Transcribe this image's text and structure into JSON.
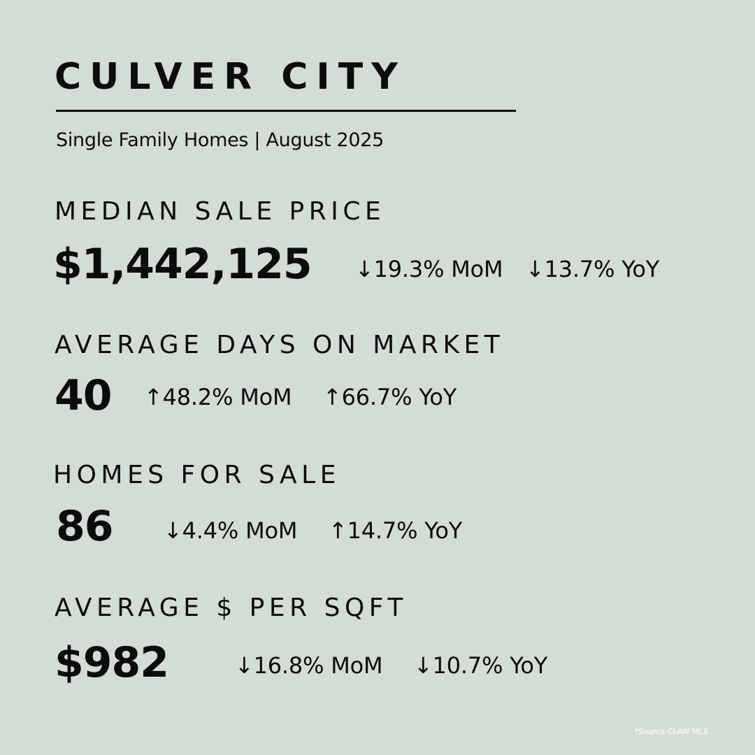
{
  "header": {
    "city": "CULVER CITY",
    "subtitle": "Single Family Homes | August 2025"
  },
  "metrics": [
    {
      "label": "MEDIAN SALE PRICE",
      "value": "$1,442,125",
      "mom": "↓19.3% MoM",
      "yoy": "↓13.7% YoY"
    },
    {
      "label": "AVERAGE DAYS ON MARKET",
      "value": "40",
      "mom": "↑48.2% MoM",
      "yoy": "↑66.7% YoY"
    },
    {
      "label": "HOMES FOR SALE",
      "value": "86",
      "mom": "↓4.4% MoM",
      "yoy": "↑14.7% YoY"
    },
    {
      "label": "AVERAGE $ PER SQFT",
      "value": "$982",
      "mom": "↓16.8% MoM",
      "yoy": "↓10.7% YoY"
    }
  ],
  "footer": {
    "source": "*Source CLAW MLS"
  },
  "colors": {
    "background": "#d4ddd5",
    "text": "#0c0c0c",
    "source_text": "#ffffff"
  }
}
